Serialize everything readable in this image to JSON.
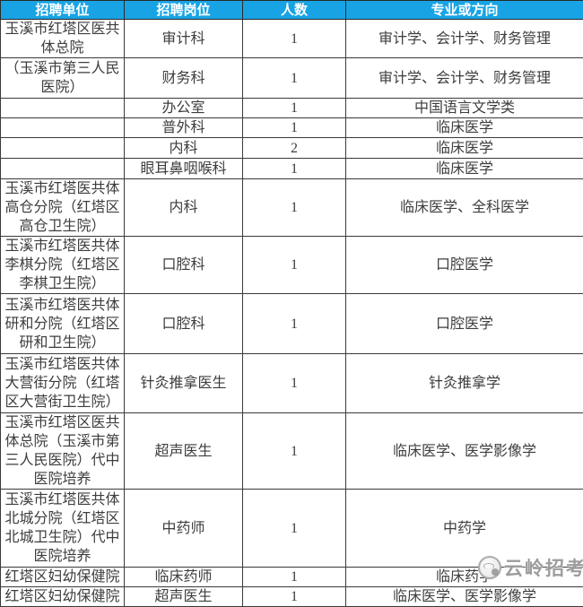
{
  "colors": {
    "header_bg": "#18A4E4",
    "header_text": "#FFFFFF",
    "border": "#3A3A3A",
    "body_text": "#3D3D3D",
    "watermark_gray": "#868686"
  },
  "table": {
    "columns": {
      "unit": "招聘单位",
      "position": "招聘岗位",
      "count": "人数",
      "major": "专业或方向"
    },
    "rows": [
      {
        "unit": "玉溪市红塔区医共体总院",
        "position": "审计科",
        "count": "1",
        "major": "审计学、会计学、财务管理"
      },
      {
        "unit": "（玉溪市第三人民医院）",
        "position": "财务科",
        "count": "1",
        "major": "审计学、会计学、财务管理"
      },
      {
        "unit": "",
        "position": "办公室",
        "count": "1",
        "major": "中国语言文学类"
      },
      {
        "unit": "",
        "position": "普外科",
        "count": "1",
        "major": "临床医学"
      },
      {
        "unit": "",
        "position": "内科",
        "count": "2",
        "major": "临床医学"
      },
      {
        "unit": "",
        "position": "眼耳鼻咽喉科",
        "count": "1",
        "major": "临床医学"
      },
      {
        "unit": "玉溪市红塔医共体高仓分院（红塔区高仓卫生院）",
        "position": "内科",
        "count": "1",
        "major": "临床医学、全科医学"
      },
      {
        "unit": "玉溪市红塔医共体李棋分院（红塔区李棋卫生院）",
        "position": "口腔科",
        "count": "1",
        "major": "口腔医学"
      },
      {
        "unit": "玉溪市红塔医共体研和分院（红塔区研和卫生院）",
        "position": "口腔科",
        "count": "1",
        "major": "口腔医学"
      },
      {
        "unit": "玉溪市红塔医共体大营街分院（红塔区大营街卫生院）",
        "position": "针灸推拿医生",
        "count": "1",
        "major": "针灸推拿学"
      },
      {
        "unit": "玉溪市红塔区医共体总院（玉溪市第三人民医院）代中医院培养",
        "position": "超声医生",
        "count": "1",
        "major": "临床医学、医学影像学"
      },
      {
        "unit": "玉溪市红塔医共体北城分院（红塔区北城卫生院）代中医院培养",
        "position": "中药师",
        "count": "1",
        "major": "中药学"
      },
      {
        "unit": "红塔区妇幼保健院",
        "position": "临床药师",
        "count": "1",
        "major": "临床药学"
      },
      {
        "unit": "红塔区妇幼保健院",
        "position": "超声医生",
        "count": "1",
        "major": "临床医学、医学影像学"
      }
    ]
  },
  "watermark": {
    "text": "云岭招考",
    "logo": "yunling-mascot-badge"
  }
}
